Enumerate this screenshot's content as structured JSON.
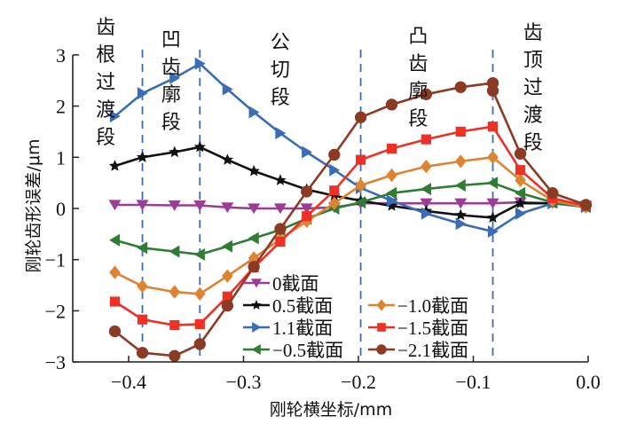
{
  "chart_data": {
    "type": "line",
    "title": "",
    "xlabel": "刚轮横坐标/mm",
    "ylabel": "刚轮齿形误差/μm",
    "ylabel_parts": [
      "刚轮齿形误差/",
      "μ",
      "m"
    ],
    "xlim": [
      -0.44,
      0.0
    ],
    "ylim": [
      -3,
      3
    ],
    "xticks": [
      -0.4,
      -0.3,
      -0.2,
      -0.1,
      0.0
    ],
    "xtick_labels": [
      "−0.4",
      "−0.3",
      "−0.2",
      "−0.1",
      "0.0"
    ],
    "yticks": [
      3,
      2,
      1,
      0,
      -1,
      -2,
      -3
    ],
    "ytick_labels": [
      "3",
      "2",
      "1",
      "0",
      "−1",
      "−2",
      "−3"
    ],
    "grid": false,
    "legend_position": "bottom-center",
    "dividers": [
      -0.388,
      -0.338,
      -0.198,
      -0.083
    ],
    "region_labels": [
      {
        "text": "齿根过渡段",
        "x": -0.42
      },
      {
        "text": "凹齿廓段",
        "x": -0.363
      },
      {
        "text": "公切段",
        "x": -0.268
      },
      {
        "text": "凸齿廓段",
        "x": -0.148
      },
      {
        "text": "齿顶过渡段",
        "x": -0.048
      }
    ],
    "x": [
      -0.412,
      -0.388,
      -0.36,
      -0.338,
      -0.314,
      -0.291,
      -0.268,
      -0.245,
      -0.221,
      -0.198,
      -0.171,
      -0.141,
      -0.111,
      -0.083,
      -0.059,
      -0.031,
      -0.002
    ],
    "series": [
      {
        "name": "0截面",
        "color": "#9b3c96",
        "marker": "tri-down",
        "values": [
          0.07,
          0.07,
          0.06,
          0.06,
          0.02,
          0.0,
          0.0,
          0.0,
          0.02,
          0.1,
          0.1,
          0.1,
          0.1,
          0.1,
          0.12,
          0.1,
          0.05
        ]
      },
      {
        "name": "0.5截面",
        "color": "#111111",
        "marker": "star",
        "values": [
          0.83,
          1.0,
          1.1,
          1.2,
          0.95,
          0.73,
          0.55,
          0.37,
          0.25,
          0.15,
          0.05,
          -0.05,
          -0.13,
          -0.18,
          0.1,
          0.1,
          0.05
        ]
      },
      {
        "name": "1.1截面",
        "color": "#3a6db5",
        "marker": "tri-right",
        "values": [
          1.8,
          2.25,
          2.55,
          2.83,
          2.33,
          1.88,
          1.47,
          1.1,
          0.75,
          0.4,
          0.15,
          -0.1,
          -0.3,
          -0.45,
          -0.1,
          0.1,
          0.03
        ]
      },
      {
        "name": "−0.5截面",
        "color": "#2e7d32",
        "marker": "tri-left",
        "values": [
          -0.62,
          -0.77,
          -0.84,
          -0.9,
          -0.74,
          -0.58,
          -0.42,
          -0.2,
          0.0,
          0.12,
          0.3,
          0.38,
          0.45,
          0.5,
          0.3,
          0.12,
          0.03
        ]
      },
      {
        "name": "−1.0截面",
        "color": "#dd8433",
        "marker": "diamond",
        "values": [
          -1.25,
          -1.52,
          -1.63,
          -1.67,
          -1.32,
          -0.97,
          -0.6,
          -0.25,
          0.1,
          0.45,
          0.65,
          0.82,
          0.92,
          1.0,
          0.55,
          0.15,
          0.03
        ]
      },
      {
        "name": "−1.5截面",
        "color": "#ee3124",
        "marker": "square",
        "values": [
          -1.82,
          -2.17,
          -2.28,
          -2.26,
          -1.72,
          -1.15,
          -0.65,
          -0.15,
          0.35,
          0.95,
          1.17,
          1.35,
          1.5,
          1.6,
          0.75,
          0.2,
          0.05
        ]
      },
      {
        "name": "−2.1截面",
        "color": "#8b3a24",
        "marker": "circle",
        "x": [
          -0.412,
          -0.388,
          -0.36,
          -0.338,
          -0.314,
          -0.291,
          -0.268,
          -0.245,
          -0.221,
          -0.198,
          -0.171,
          -0.141,
          -0.111,
          -0.083,
          -0.083,
          -0.059,
          -0.031,
          -0.002
        ],
        "values": [
          -2.4,
          -2.82,
          -2.88,
          -2.65,
          -1.9,
          -1.14,
          -0.4,
          0.33,
          1.05,
          1.78,
          2.03,
          2.23,
          2.37,
          2.45,
          2.3,
          1.07,
          0.3,
          0.07
        ]
      }
    ]
  }
}
